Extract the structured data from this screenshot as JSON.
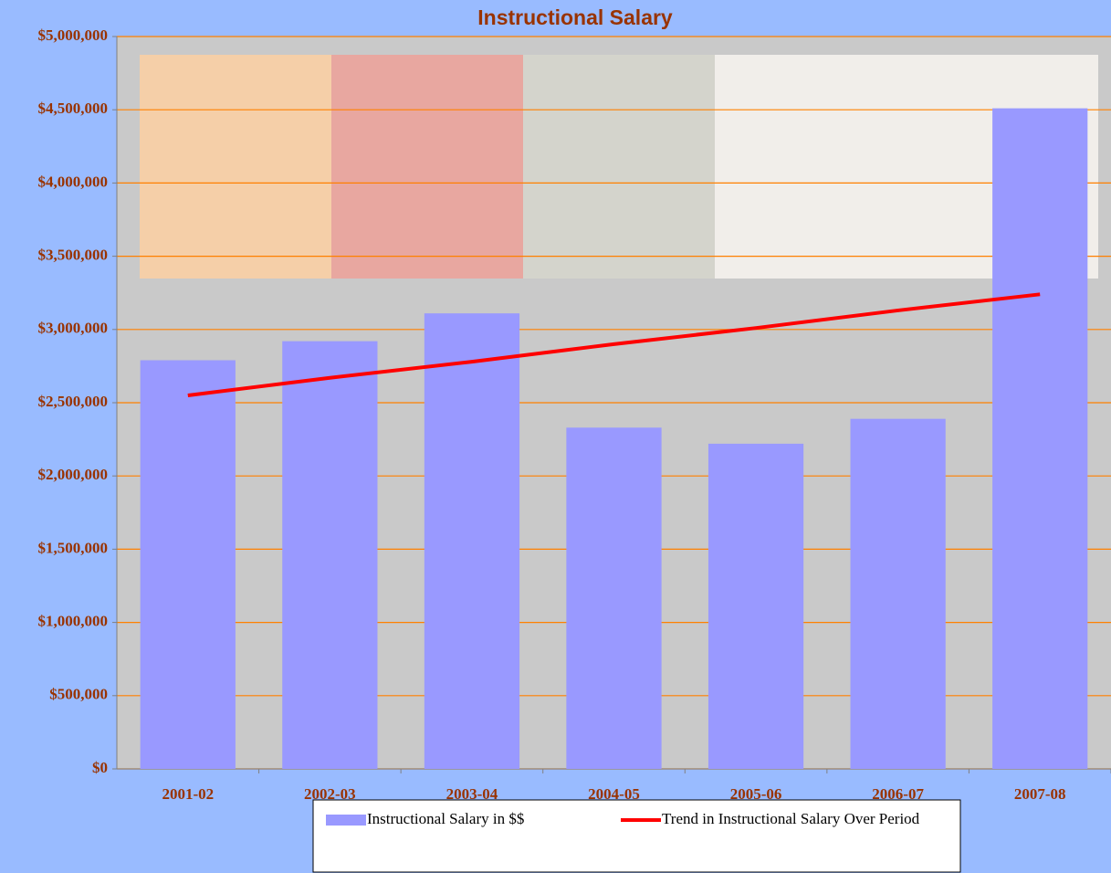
{
  "chart_data": {
    "type": "bar_line",
    "title": "Instructional Salary",
    "categories": [
      "2001-02",
      "2002-03",
      "2003-04",
      "2004-05",
      "2005-06",
      "2006-07",
      "2007-08"
    ],
    "series": [
      {
        "name": "Instructional Salary in $$",
        "type": "bar",
        "color": "#9999ff",
        "values": [
          2790000,
          2920000,
          3110000,
          2330000,
          2220000,
          2390000,
          4510000
        ]
      },
      {
        "name": "Trend in Instructional Salary Over Period",
        "type": "line",
        "color": "#ff0000",
        "values": [
          2550000,
          2670000,
          2780000,
          2900000,
          3010000,
          3130000,
          3240000
        ]
      }
    ],
    "ylim": [
      0,
      5000000
    ],
    "yticks": [
      {
        "value": 0,
        "label": "$0"
      },
      {
        "value": 500000,
        "label": "$500,000"
      },
      {
        "value": 1000000,
        "label": "$1,000,000"
      },
      {
        "value": 1500000,
        "label": "$1,500,000"
      },
      {
        "value": 2000000,
        "label": "$2,000,000"
      },
      {
        "value": 2500000,
        "label": "$2,500,000"
      },
      {
        "value": 3000000,
        "label": "$3,000,000"
      },
      {
        "value": 3500000,
        "label": "$3,500,000"
      },
      {
        "value": 4000000,
        "label": "$4,000,000"
      },
      {
        "value": 4500000,
        "label": "$4,500,000"
      },
      {
        "value": 5000000,
        "label": "$5,000,000"
      }
    ],
    "grid": true,
    "legend": "bottom"
  }
}
